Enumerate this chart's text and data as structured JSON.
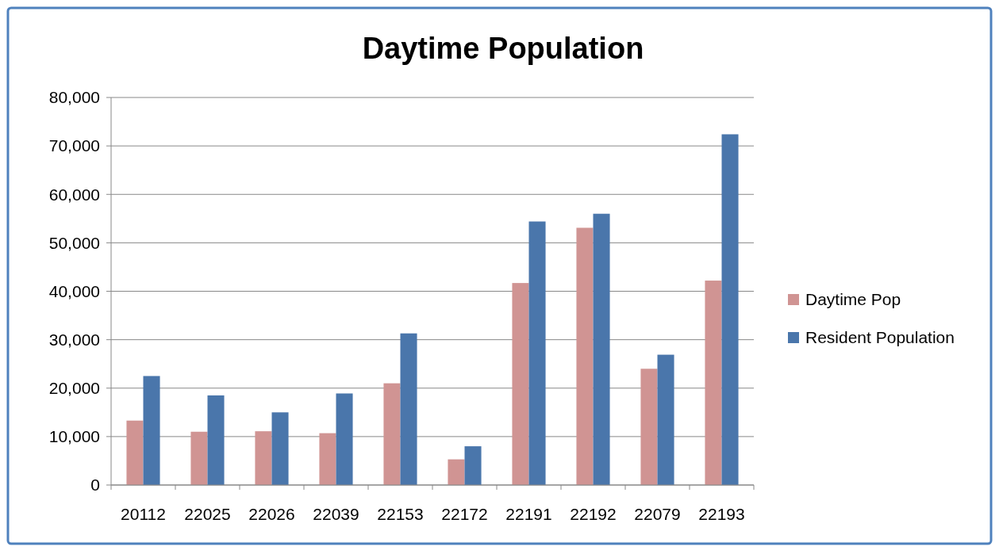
{
  "chart_data": {
    "type": "bar",
    "title": "Daytime Population",
    "categories": [
      "20112",
      "22025",
      "22026",
      "22039",
      "22153",
      "22172",
      "22191",
      "22192",
      "22079",
      "22193"
    ],
    "series": [
      {
        "name": "Daytime Pop",
        "color": "#d09493",
        "values": [
          13300,
          11000,
          11100,
          10700,
          21000,
          5300,
          41700,
          53100,
          24000,
          42200
        ]
      },
      {
        "name": "Resident Population",
        "color": "#4a76ab",
        "values": [
          22500,
          18500,
          15000,
          18900,
          31300,
          8000,
          54400,
          56000,
          26900,
          72400
        ]
      }
    ],
    "ylim": [
      0,
      80000
    ],
    "yticks": [
      {
        "value": 0,
        "label": "0"
      },
      {
        "value": 10000,
        "label": "10,000"
      },
      {
        "value": 20000,
        "label": "20,000"
      },
      {
        "value": 30000,
        "label": "30,000"
      },
      {
        "value": 40000,
        "label": "40,000"
      },
      {
        "value": 50000,
        "label": "50,000"
      },
      {
        "value": 60000,
        "label": "60,000"
      },
      {
        "value": 70000,
        "label": "70,000"
      },
      {
        "value": 80000,
        "label": "80,000"
      }
    ],
    "grid": "y",
    "legend": "right"
  }
}
